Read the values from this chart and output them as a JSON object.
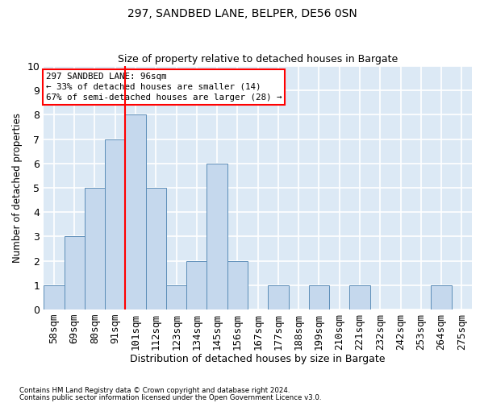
{
  "title1": "297, SANDBED LANE, BELPER, DE56 0SN",
  "title2": "Size of property relative to detached houses in Bargate",
  "xlabel": "Distribution of detached houses by size in Bargate",
  "ylabel": "Number of detached properties",
  "categories": [
    "58sqm",
    "69sqm",
    "80sqm",
    "91sqm",
    "101sqm",
    "112sqm",
    "123sqm",
    "134sqm",
    "145sqm",
    "156sqm",
    "167sqm",
    "177sqm",
    "188sqm",
    "199sqm",
    "210sqm",
    "221sqm",
    "232sqm",
    "242sqm",
    "253sqm",
    "264sqm",
    "275sqm"
  ],
  "values": [
    1,
    3,
    5,
    7,
    8,
    5,
    1,
    2,
    6,
    2,
    0,
    1,
    0,
    1,
    0,
    1,
    0,
    0,
    0,
    1,
    0
  ],
  "bar_color": "#c5d8ed",
  "bar_edge_color": "#5b8db8",
  "red_line_x": 4.0,
  "annotation_text": "297 SANDBED LANE: 96sqm\n← 33% of detached houses are smaller (14)\n67% of semi-detached houses are larger (28) →",
  "annotation_box_color": "white",
  "annotation_box_edge_color": "red",
  "ylim": [
    0,
    10
  ],
  "yticks": [
    0,
    1,
    2,
    3,
    4,
    5,
    6,
    7,
    8,
    9,
    10
  ],
  "footer1": "Contains HM Land Registry data © Crown copyright and database right 2024.",
  "footer2": "Contains public sector information licensed under the Open Government Licence v3.0.",
  "background_color": "#dce9f5",
  "grid_color": "white"
}
